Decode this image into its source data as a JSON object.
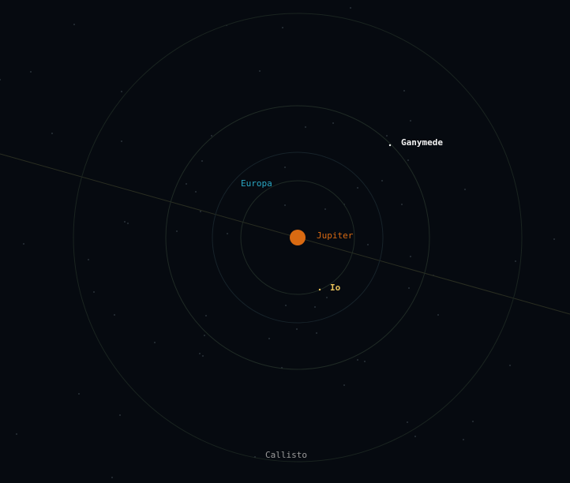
{
  "bodies": {
    "planet": {
      "label": "Jupiter",
      "color": "#d96a12",
      "label_color": "#d96a12"
    },
    "io": {
      "label": "Io",
      "color": "#e8c25a",
      "label_color": "#e8c25a"
    },
    "europa": {
      "label": "Europa",
      "color": "#2aa7c4",
      "label_color": "#2aa7c4"
    },
    "ganymede": {
      "label": "Ganymede",
      "color": "#f2f2f2",
      "label_color": "#f2f2f2"
    },
    "callisto": {
      "label": "Callisto",
      "color": "#9a9a9a",
      "label_color": "#9a9a9a"
    }
  },
  "colors": {
    "background": "#060a10",
    "orbit": "#1f2a25",
    "ecliptic": "#2a2e22",
    "star": "#8fa0ad"
  }
}
